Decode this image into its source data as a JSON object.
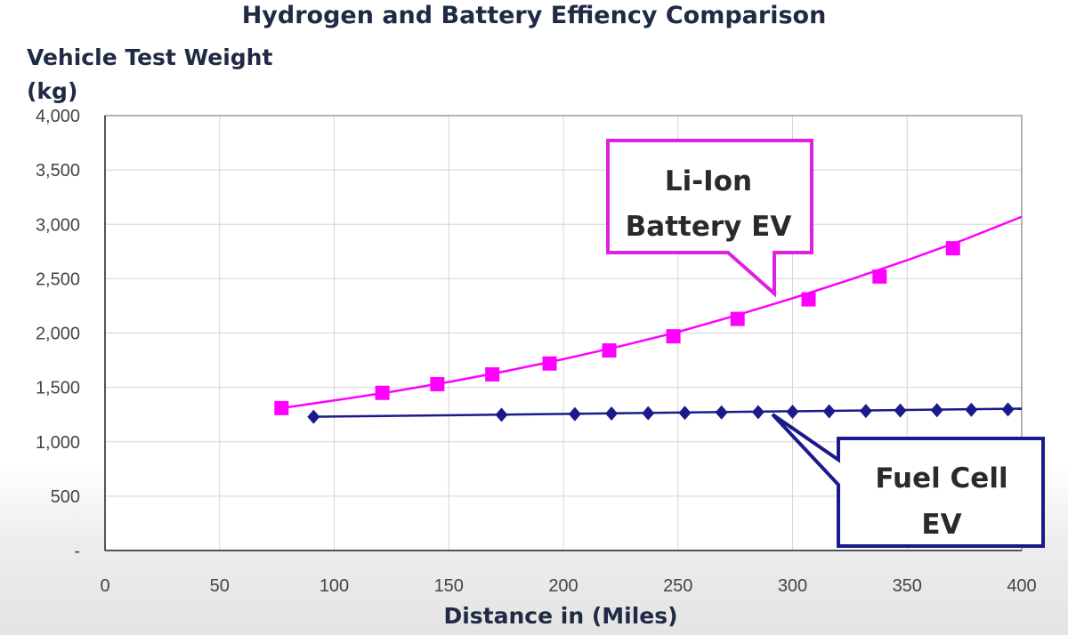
{
  "chart_data": {
    "type": "line",
    "title": "Hydrogen and Battery Effiency Comparison",
    "ylabel": "Vehicle Test Weight (kg)",
    "xlabel": "Distance in (Miles)",
    "xlim": [
      0,
      400
    ],
    "ylim": [
      0,
      4000
    ],
    "x_ticks": [
      "0",
      "50",
      "100",
      "150",
      "200",
      "250",
      "300",
      "350",
      "400"
    ],
    "y_ticks": [
      "-",
      "500",
      "1,000",
      "1,500",
      "2,000",
      "2,500",
      "3,000",
      "3,500",
      "4,000"
    ],
    "grid": true,
    "series": [
      {
        "name": "Li-Ion Battery EV",
        "color": "#ff00ff",
        "marker": "square",
        "x": [
          77,
          121,
          145,
          169,
          194,
          220,
          248,
          276,
          307,
          338,
          370
        ],
        "y": [
          1310,
          1450,
          1530,
          1620,
          1720,
          1840,
          1970,
          2130,
          2310,
          2520,
          2780
        ],
        "line_x": [
          77,
          100,
          125,
          150,
          175,
          200,
          225,
          250,
          275,
          300,
          325,
          350,
          375,
          400
        ],
        "line_y": [
          1310,
          1380,
          1460,
          1550,
          1650,
          1760,
          1880,
          2010,
          2160,
          2320,
          2490,
          2670,
          2860,
          3070
        ]
      },
      {
        "name": "Fuel Cell EV",
        "color": "#1a1a8c",
        "marker": "diamond",
        "x": [
          91,
          173,
          205,
          221,
          237,
          253,
          269,
          285,
          300,
          316,
          332,
          347,
          363,
          378,
          394
        ],
        "y": [
          1230,
          1248,
          1255,
          1260,
          1263,
          1266,
          1270,
          1273,
          1276,
          1280,
          1283,
          1287,
          1290,
          1294,
          1298
        ],
        "line_x": [
          91,
          400
        ],
        "line_y": [
          1230,
          1305
        ]
      }
    ],
    "annotations": [
      {
        "series": 0,
        "line1": "Li-Ion",
        "line2": "Battery EV"
      },
      {
        "series": 1,
        "line1": "Fuel Cell",
        "line2": "EV"
      }
    ]
  }
}
